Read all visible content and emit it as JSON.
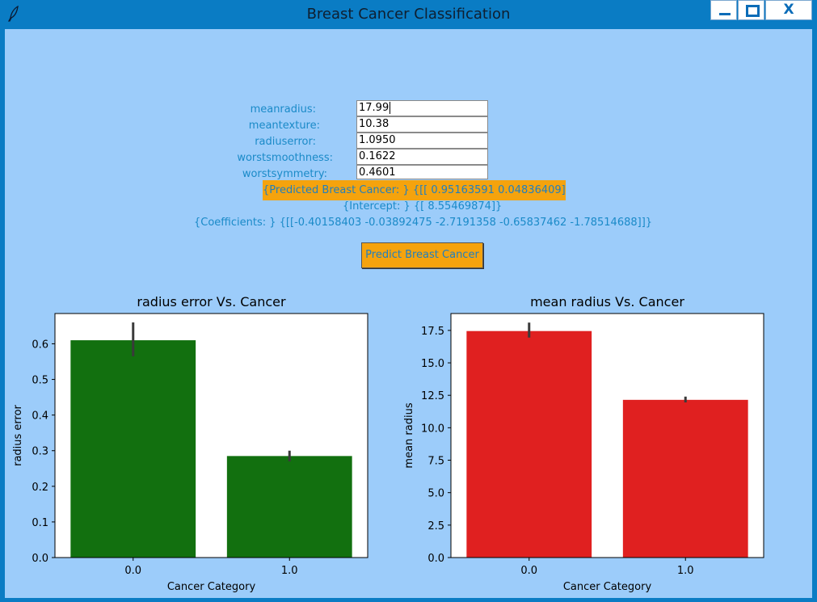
{
  "window": {
    "title": "Breast Cancer Classification",
    "close_label": "X",
    "colors": {
      "titlebar": "#0a7cc4",
      "client": "#9cccfa",
      "accent": "#f5a30d",
      "label_text": "#1a8ac8"
    }
  },
  "form": {
    "fields": [
      {
        "label": "meanradius:",
        "value": "17.99"
      },
      {
        "label": "meantexture:",
        "value": "10.38"
      },
      {
        "label": "radiuserror:",
        "value": "1.0950"
      },
      {
        "label": "worstsmoothness:",
        "value": "0.1622"
      },
      {
        "label": "worstsymmetry:",
        "value": "0.4601"
      }
    ],
    "predicted_text": "{Predicted Breast Cancer: } {[[ 0.95163591  0.04836409]]}",
    "intercept_text": "{Intercept: } {[ 8.55469874]}",
    "coefficients_text": "{Coefficients: } {[[-0.40158403 -0.03892475 -2.7191358  -0.65837462 -1.78514688]]}",
    "predict_button_label": "Predict Breast Cancer"
  },
  "chart_data": [
    {
      "type": "bar",
      "title": "radius error Vs. Cancer",
      "xlabel": "Cancer Category",
      "ylabel": "radius error",
      "categories": [
        "0.0",
        "1.0"
      ],
      "values": [
        0.61,
        0.285
      ],
      "error_low": [
        0.565,
        0.27
      ],
      "error_high": [
        0.66,
        0.3
      ],
      "ylim": [
        0,
        0.685
      ],
      "yticks": [
        0.0,
        0.1,
        0.2,
        0.3,
        0.4,
        0.5,
        0.6
      ],
      "ytick_labels": [
        "0.0",
        "0.1",
        "0.2",
        "0.3",
        "0.4",
        "0.5",
        "0.6"
      ],
      "color": "#12700f"
    },
    {
      "type": "bar",
      "title": "mean radius Vs. Cancer",
      "xlabel": "Cancer Category",
      "ylabel": "mean radius",
      "categories": [
        "0.0",
        "1.0"
      ],
      "values": [
        17.45,
        12.15
      ],
      "error_low": [
        16.95,
        11.95
      ],
      "error_high": [
        18.1,
        12.4
      ],
      "ylim": [
        0,
        18.8
      ],
      "yticks": [
        0.0,
        2.5,
        5.0,
        7.5,
        10.0,
        12.5,
        15.0,
        17.5
      ],
      "ytick_labels": [
        "0.0",
        "2.5",
        "5.0",
        "7.5",
        "10.0",
        "12.5",
        "15.0",
        "17.5"
      ],
      "color": "#e02020"
    }
  ]
}
